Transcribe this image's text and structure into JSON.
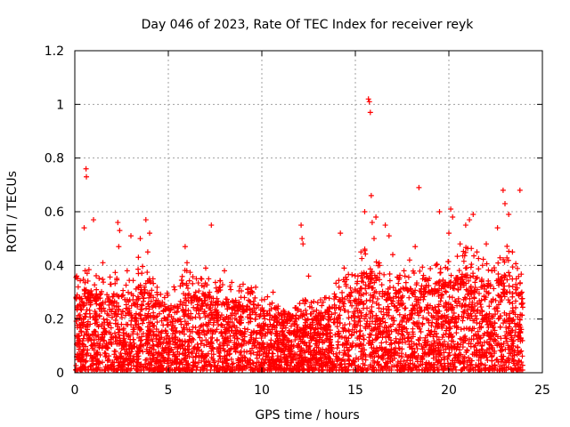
{
  "chart_data": {
    "type": "scatter",
    "title": "Day 046 of 2023, Rate Of TEC Index for receiver reyk",
    "xlabel": "GPS time / hours",
    "ylabel": "ROTI / TECUs",
    "xlim": [
      0,
      25
    ],
    "ylim": [
      0,
      1.2
    ],
    "xticks": [
      "0",
      "5",
      "10",
      "15",
      "20",
      "25"
    ],
    "yticks": [
      "0",
      "0.2",
      "0.4",
      "0.6",
      "0.8",
      "1",
      "1.2"
    ],
    "grid": true,
    "marker": "+",
    "color": "#ff0000",
    "points": [
      [
        0.1,
        0.36
      ],
      [
        0.2,
        0.12
      ],
      [
        0.3,
        0.25
      ],
      [
        0.4,
        0.08
      ],
      [
        0.5,
        0.54
      ],
      [
        0.55,
        0.38
      ],
      [
        0.6,
        0.76
      ],
      [
        0.62,
        0.73
      ],
      [
        0.7,
        0.18
      ],
      [
        0.8,
        0.3
      ],
      [
        0.9,
        0.05
      ],
      [
        1.0,
        0.57
      ],
      [
        1.1,
        0.2
      ],
      [
        1.2,
        0.28
      ],
      [
        1.3,
        0.1
      ],
      [
        1.5,
        0.41
      ],
      [
        1.7,
        0.15
      ],
      [
        1.9,
        0.33
      ],
      [
        2.1,
        0.22
      ],
      [
        2.3,
        0.56
      ],
      [
        2.35,
        0.47
      ],
      [
        2.4,
        0.53
      ],
      [
        2.6,
        0.12
      ],
      [
        2.8,
        0.38
      ],
      [
        3.0,
        0.51
      ],
      [
        3.2,
        0.2
      ],
      [
        3.4,
        0.43
      ],
      [
        3.5,
        0.5
      ],
      [
        3.6,
        0.3
      ],
      [
        3.8,
        0.57
      ],
      [
        3.9,
        0.45
      ],
      [
        4.0,
        0.52
      ],
      [
        4.2,
        0.25
      ],
      [
        4.5,
        0.14
      ],
      [
        4.8,
        0.28
      ],
      [
        5.0,
        0.18
      ],
      [
        5.3,
        0.32
      ],
      [
        5.6,
        0.1
      ],
      [
        5.9,
        0.47
      ],
      [
        6.0,
        0.41
      ],
      [
        6.2,
        0.22
      ],
      [
        6.5,
        0.35
      ],
      [
        6.8,
        0.15
      ],
      [
        7.0,
        0.39
      ],
      [
        7.2,
        0.3
      ],
      [
        7.3,
        0.55
      ],
      [
        7.6,
        0.12
      ],
      [
        8.0,
        0.38
      ],
      [
        8.3,
        0.2
      ],
      [
        8.6,
        0.27
      ],
      [
        9.0,
        0.33
      ],
      [
        9.4,
        0.14
      ],
      [
        9.8,
        0.25
      ],
      [
        10.2,
        0.18
      ],
      [
        10.6,
        0.3
      ],
      [
        11.0,
        0.12
      ],
      [
        11.4,
        0.22
      ],
      [
        11.8,
        0.2
      ],
      [
        12.1,
        0.55
      ],
      [
        12.15,
        0.5
      ],
      [
        12.2,
        0.48
      ],
      [
        12.5,
        0.36
      ],
      [
        12.8,
        0.14
      ],
      [
        13.2,
        0.25
      ],
      [
        13.6,
        0.1
      ],
      [
        14.0,
        0.2
      ],
      [
        14.2,
        0.52
      ],
      [
        14.4,
        0.39
      ],
      [
        14.8,
        0.3
      ],
      [
        15.0,
        0.18
      ],
      [
        15.3,
        0.45
      ],
      [
        15.5,
        0.6
      ],
      [
        15.7,
        1.02
      ],
      [
        15.75,
        1.01
      ],
      [
        15.8,
        0.97
      ],
      [
        15.85,
        0.66
      ],
      [
        15.9,
        0.56
      ],
      [
        16.0,
        0.5
      ],
      [
        16.1,
        0.58
      ],
      [
        16.3,
        0.4
      ],
      [
        16.6,
        0.55
      ],
      [
        16.8,
        0.51
      ],
      [
        17.0,
        0.44
      ],
      [
        17.3,
        0.3
      ],
      [
        17.6,
        0.38
      ],
      [
        17.9,
        0.42
      ],
      [
        18.2,
        0.47
      ],
      [
        18.4,
        0.69
      ],
      [
        18.6,
        0.35
      ],
      [
        19.0,
        0.25
      ],
      [
        19.3,
        0.4
      ],
      [
        19.5,
        0.6
      ],
      [
        19.7,
        0.33
      ],
      [
        20.0,
        0.52
      ],
      [
        20.1,
        0.61
      ],
      [
        20.2,
        0.58
      ],
      [
        20.4,
        0.35
      ],
      [
        20.6,
        0.48
      ],
      [
        20.9,
        0.55
      ],
      [
        21.1,
        0.57
      ],
      [
        21.3,
        0.59
      ],
      [
        21.5,
        0.45
      ],
      [
        21.8,
        0.4
      ],
      [
        22.0,
        0.48
      ],
      [
        22.3,
        0.38
      ],
      [
        22.6,
        0.54
      ],
      [
        22.9,
        0.68
      ],
      [
        23.0,
        0.63
      ],
      [
        23.2,
        0.59
      ],
      [
        23.4,
        0.45
      ],
      [
        23.6,
        0.35
      ],
      [
        23.8,
        0.68
      ],
      [
        23.9,
        0.3
      ]
    ],
    "density": {
      "bins": [
        [
          0.5,
          0.32
        ],
        [
          1.0,
          0.3
        ],
        [
          1.5,
          0.28
        ],
        [
          2.0,
          0.3
        ],
        [
          2.5,
          0.3
        ],
        [
          3.0,
          0.3
        ],
        [
          3.5,
          0.33
        ],
        [
          4.0,
          0.3
        ],
        [
          4.5,
          0.27
        ],
        [
          5.0,
          0.25
        ],
        [
          5.5,
          0.26
        ],
        [
          6.0,
          0.32
        ],
        [
          6.5,
          0.28
        ],
        [
          7.0,
          0.3
        ],
        [
          7.5,
          0.28
        ],
        [
          8.0,
          0.28
        ],
        [
          8.5,
          0.27
        ],
        [
          9.0,
          0.26
        ],
        [
          9.5,
          0.26
        ],
        [
          10.0,
          0.25
        ],
        [
          10.5,
          0.22
        ],
        [
          11.0,
          0.2
        ],
        [
          11.5,
          0.2
        ],
        [
          12.0,
          0.22
        ],
        [
          12.5,
          0.22
        ],
        [
          13.0,
          0.22
        ],
        [
          13.5,
          0.24
        ],
        [
          14.0,
          0.27
        ],
        [
          14.5,
          0.3
        ],
        [
          15.0,
          0.32
        ],
        [
          15.5,
          0.4
        ],
        [
          16.0,
          0.38
        ],
        [
          16.5,
          0.3
        ],
        [
          17.0,
          0.3
        ],
        [
          17.5,
          0.32
        ],
        [
          18.0,
          0.33
        ],
        [
          18.5,
          0.33
        ],
        [
          19.0,
          0.32
        ],
        [
          19.5,
          0.35
        ],
        [
          20.0,
          0.34
        ],
        [
          20.5,
          0.36
        ],
        [
          21.0,
          0.38
        ],
        [
          21.5,
          0.36
        ],
        [
          22.0,
          0.35
        ],
        [
          22.5,
          0.33
        ],
        [
          23.0,
          0.38
        ],
        [
          23.5,
          0.38
        ],
        [
          23.9,
          0.3
        ]
      ]
    }
  }
}
